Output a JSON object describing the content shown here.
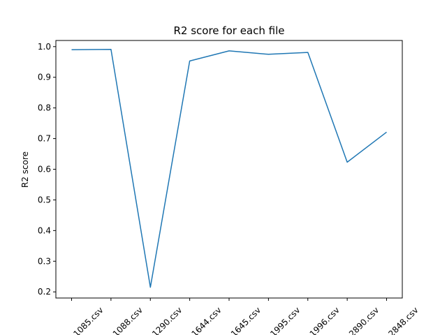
{
  "chart_data": {
    "type": "line",
    "title": "R2 score for each file",
    "xlabel": "",
    "ylabel": "R2 score",
    "categories": [
      "1085.csv",
      "1088.csv",
      "1290.csv",
      "1644.csv",
      "1645.csv",
      "1995.csv",
      "1996.csv",
      "2890.csv",
      "2848.csv"
    ],
    "series": [
      {
        "values": [
          0.99,
          0.991,
          0.215,
          0.953,
          0.986,
          0.975,
          0.981,
          0.623,
          0.721
        ]
      }
    ],
    "ylim": [
      0.18,
      1.02
    ],
    "yticks": [
      0.2,
      0.3,
      0.4,
      0.5,
      0.6,
      0.7,
      0.8,
      0.9,
      1.0
    ],
    "ytick_labels": [
      "0.2",
      "0.3",
      "0.4",
      "0.5",
      "0.6",
      "0.7",
      "0.8",
      "0.9",
      "1.0"
    ],
    "grid": false,
    "legend": "none",
    "line_color": "#1f77b4"
  }
}
